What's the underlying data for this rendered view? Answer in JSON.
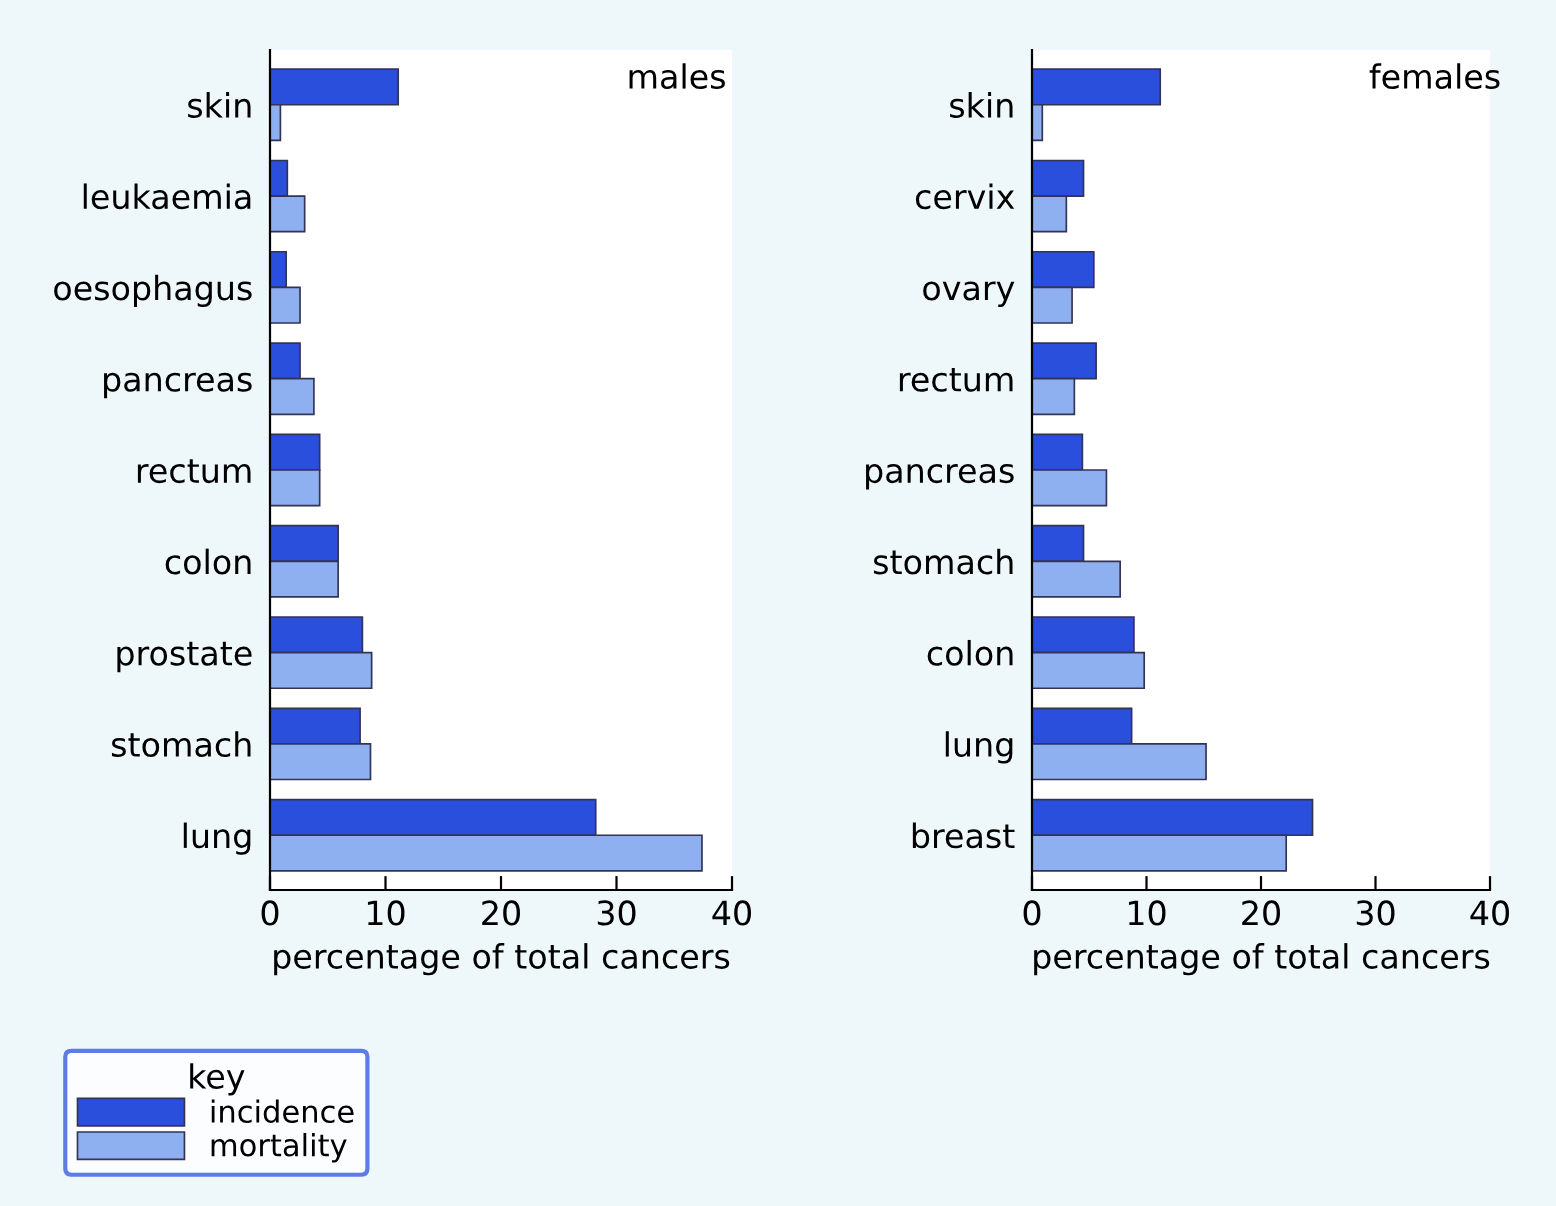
{
  "chart_data": [
    {
      "type": "bar",
      "orientation": "horizontal",
      "title": "males",
      "xlabel": "percentage of total cancers",
      "categories": [
        "skin",
        "leukaemia",
        "oesophagus",
        "pancreas",
        "rectum",
        "colon",
        "prostate",
        "stomach",
        "lung"
      ],
      "series": [
        {
          "name": "incidence",
          "color": "#2a4fdc",
          "values": [
            11.1,
            1.5,
            1.4,
            2.6,
            4.3,
            5.9,
            8.0,
            7.8,
            28.2
          ]
        },
        {
          "name": "mortality",
          "color": "#8fb0f0",
          "values": [
            0.9,
            3.0,
            2.6,
            3.8,
            4.3,
            5.9,
            8.8,
            8.7,
            37.4
          ]
        }
      ],
      "xlim": [
        0,
        40
      ],
      "xticks": [
        0,
        10,
        20,
        30,
        40
      ],
      "grid": false,
      "legend": "bottom left",
      "legend_title": "key"
    },
    {
      "type": "bar",
      "orientation": "horizontal",
      "title": "females",
      "xlabel": "percentage of total cancers",
      "categories": [
        "skin",
        "cervix",
        "ovary",
        "rectum",
        "pancreas",
        "stomach",
        "colon",
        "lung",
        "breast"
      ],
      "series": [
        {
          "color": "#2a4fdc",
          "values": [
            11.2,
            4.5,
            5.4,
            5.6,
            4.4,
            4.5,
            8.9,
            8.7,
            24.5
          ]
        },
        {
          "color": "#8fb0f0",
          "values": [
            0.9,
            3.0,
            3.5,
            3.7,
            6.5,
            7.7,
            9.8,
            15.2,
            22.2
          ]
        }
      ],
      "xlim": [
        0,
        40
      ],
      "xticks": [
        0,
        10,
        20,
        30,
        40
      ],
      "grid": false,
      "legend": false
    }
  ]
}
